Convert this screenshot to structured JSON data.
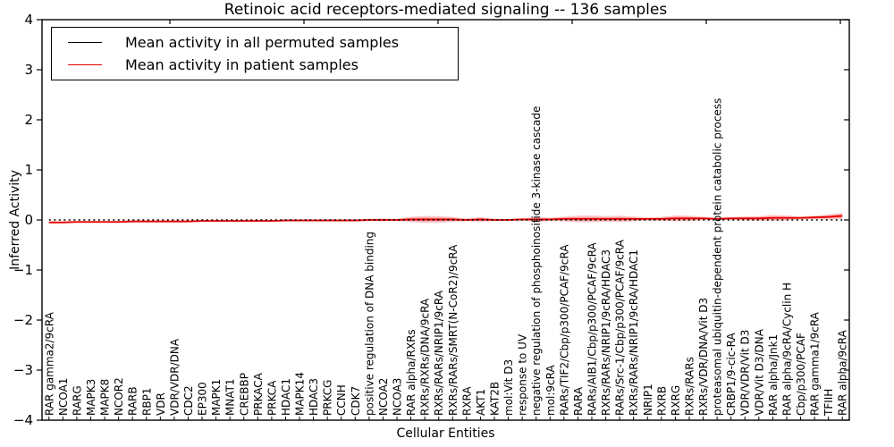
{
  "chart_data": {
    "type": "line",
    "title": "Retinoic acid receptors-mediated signaling -- 136 samples",
    "xlabel": "Cellular Entities",
    "ylabel": "Inferred Activity",
    "ylim": [
      -4,
      4
    ],
    "yticks": [
      4,
      3,
      2,
      1,
      0,
      -1,
      -2,
      -3,
      -4
    ],
    "grid": false,
    "legend_position": "upper left",
    "colors": {
      "permuted_line": "#000000",
      "patient_line": "#e60000",
      "patient_band": "rgba(255,0,0,0.22)"
    },
    "categories": [
      "RAR gamma2/9cRA",
      "NCOA1",
      "RARG",
      "MAPK3",
      "MAPK8",
      "NCOR2",
      "RARB",
      "RBP1",
      "VDR",
      "VDR/VDR/DNA",
      "CDC2",
      "EP300",
      "MAPK1",
      "MNAT1",
      "CREBBP",
      "PRKACA",
      "PRKCA",
      "HDAC1",
      "MAPK14",
      "HDAC3",
      "PRKCG",
      "CCNH",
      "CDK7",
      "positive regulation of DNA binding",
      "NCOA2",
      "NCOA3",
      "RAR alpha/RXRs",
      "RXRs/RXRs/DNA/9cRA",
      "RXRs/RARs/NRIP1/9cRA",
      "RXRs/RARs/SMRT(N-CoR2)/9cRA",
      "RXRA",
      "AKT1",
      "KAT2B",
      "mol:Vit D3",
      "response to UV",
      "negative regulation of phosphoinositide 3-kinase cascade",
      "mol:9cRA",
      "RARs/TIF2/Cbp/p300/PCAF/9cRA",
      "RARA",
      "RARs/AIB1/Cbp/p300/PCAF/9cRA",
      "RXRs/RARs/NRIP1/9cRA/HDAC3",
      "RARs/Src-1/Cbp/p300/PCAF/9cRA",
      "RXRs/RARs/NRIP1/9cRA/HDAC1",
      "NRIP1",
      "RXRB",
      "RXRG",
      "RXRs/RARs",
      "RXRs/VDR/DNA/Vit D3",
      "proteasomal ubiquitin-dependent protein catabolic process",
      "CRBP1/9-cic-RA",
      "VDR/VDR/Vit D3",
      "VDR/Vit D3/DNA",
      "RAR alpha/Jnk1",
      "RAR alpha/9cRA/Cyclin H",
      "Cbp/p300/PCAF",
      "RAR gamma1/9cRA",
      "TFIIH",
      "RAR alpha/9cRA"
    ],
    "series": [
      {
        "name": "Mean activity in all permuted samples",
        "color": "#000000",
        "style": "dotted",
        "values": [
          0,
          0,
          0,
          0,
          0,
          0,
          0,
          0,
          0,
          0,
          0,
          0,
          0,
          0,
          0,
          0,
          0,
          0,
          0,
          0,
          0,
          0,
          0,
          0,
          0,
          0,
          0,
          0,
          0,
          0,
          0,
          0,
          0,
          0,
          0,
          0,
          0,
          0,
          0,
          0,
          0,
          0,
          0,
          0,
          0,
          0,
          0,
          0,
          0,
          0,
          0,
          0,
          0,
          0,
          0,
          0,
          0,
          0
        ]
      },
      {
        "name": "Mean activity in patient samples",
        "color": "#e60000",
        "style": "solid",
        "values": [
          -0.05,
          -0.05,
          -0.04,
          -0.04,
          -0.04,
          -0.04,
          -0.03,
          -0.03,
          -0.03,
          -0.03,
          -0.03,
          -0.02,
          -0.02,
          -0.02,
          -0.02,
          -0.02,
          -0.02,
          -0.01,
          -0.01,
          -0.01,
          -0.01,
          -0.01,
          -0.01,
          0,
          0,
          0,
          0.01,
          0.01,
          0.01,
          0.01,
          0,
          0.01,
          0,
          0,
          0.01,
          0.01,
          0.01,
          0.02,
          0.02,
          0.02,
          0.02,
          0.02,
          0.02,
          0.02,
          0.02,
          0.03,
          0.03,
          0.03,
          0.02,
          0.03,
          0.03,
          0.03,
          0.04,
          0.04,
          0.04,
          0.05,
          0.06,
          0.08
        ],
        "band_halfwidth": [
          0.02,
          0.02,
          0.02,
          0.02,
          0.02,
          0.02,
          0.02,
          0.02,
          0.02,
          0.02,
          0.02,
          0.02,
          0.02,
          0.02,
          0.02,
          0.02,
          0.02,
          0.02,
          0.02,
          0.02,
          0.02,
          0.02,
          0.02,
          0.025,
          0.03,
          0.025,
          0.055,
          0.07,
          0.065,
          0.05,
          0.03,
          0.045,
          0.025,
          0.02,
          0.025,
          0.05,
          0.035,
          0.05,
          0.065,
          0.07,
          0.055,
          0.065,
          0.05,
          0.03,
          0.04,
          0.06,
          0.055,
          0.035,
          0.025,
          0.03,
          0.04,
          0.045,
          0.06,
          0.05,
          0.03,
          0.035,
          0.05,
          0.06
        ]
      }
    ]
  }
}
